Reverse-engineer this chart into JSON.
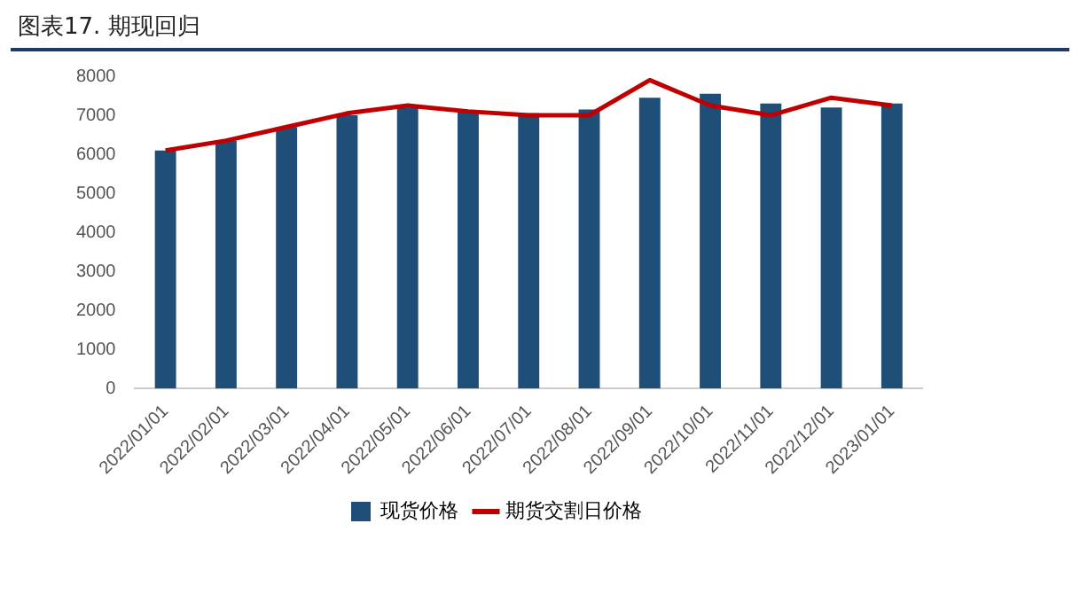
{
  "chart_data": {
    "type": "bar",
    "title": "图表17. 期现回归",
    "categories": [
      "2022/01/01",
      "2022/02/01",
      "2022/03/01",
      "2022/04/01",
      "2022/05/01",
      "2022/06/01",
      "2022/07/01",
      "2022/08/01",
      "2022/09/01",
      "2022/10/01",
      "2022/11/01",
      "2022/12/01",
      "2023/01/01"
    ],
    "series": [
      {
        "name": "现货价格",
        "color": "#1f4e79",
        "values": [
          6100,
          6350,
          6700,
          7000,
          7200,
          7100,
          7050,
          7150,
          7450,
          7550,
          7300,
          7200,
          7300
        ]
      },
      {
        "name": "期货交割日价格",
        "type": "line",
        "color": "#c00000",
        "values": [
          6100,
          6350,
          6700,
          7050,
          7250,
          7100,
          7000,
          7000,
          7900,
          7250,
          7000,
          7450,
          7250
        ]
      }
    ],
    "ylim": [
      0,
      8000
    ],
    "yticks": [
      0,
      1000,
      2000,
      3000,
      4000,
      5000,
      6000,
      7000,
      8000
    ],
    "grid": false,
    "legend": "bottom",
    "marker": "none"
  }
}
